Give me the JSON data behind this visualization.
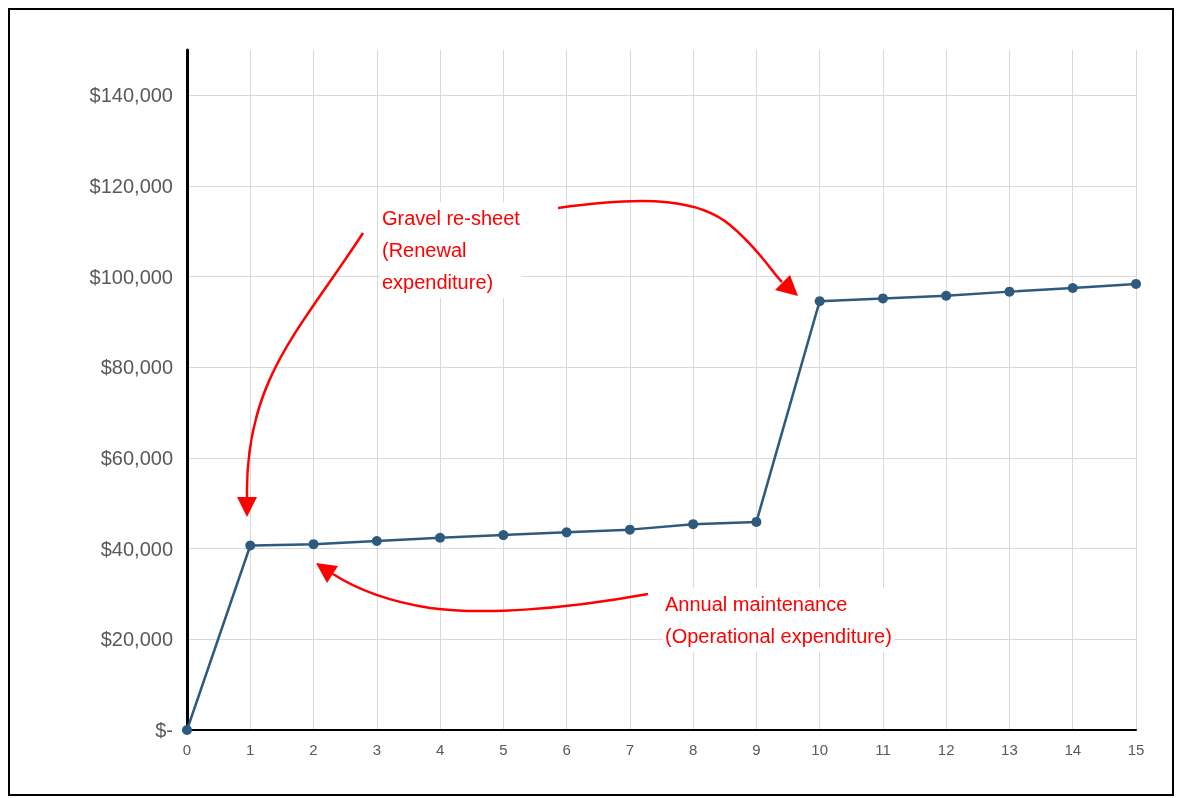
{
  "chart_data": {
    "type": "line",
    "x": [
      0,
      1,
      2,
      3,
      4,
      5,
      6,
      7,
      8,
      9,
      10,
      11,
      12,
      13,
      14,
      15
    ],
    "series": [
      {
        "color": "#2e5a7e",
        "values": [
          0,
          40700,
          41000,
          41700,
          42400,
          43000,
          43600,
          44200,
          45400,
          45900,
          94600,
          95200,
          95800,
          96700,
          97500,
          98400
        ]
      }
    ],
    "xlim": [
      0,
      15
    ],
    "xticks": [
      0,
      1,
      2,
      3,
      4,
      5,
      6,
      7,
      8,
      9,
      10,
      11,
      12,
      13,
      14,
      15
    ],
    "ylim": [
      0,
      150000
    ],
    "yticks": [
      {
        "value": 0,
        "label": "$-"
      },
      {
        "value": 20000,
        "label": "$20,000"
      },
      {
        "value": 40000,
        "label": "$40,000"
      },
      {
        "value": 60000,
        "label": "$60,000"
      },
      {
        "value": 80000,
        "label": "$80,000"
      },
      {
        "value": 100000,
        "label": "$100,000"
      },
      {
        "value": 120000,
        "label": "$120,000"
      },
      {
        "value": 140000,
        "label": "$140,000"
      }
    ],
    "annotations": [
      "Gravel re-sheet\n(Renewal\nexpenditure)",
      "Annual maintenance\n(Operational expenditure)"
    ],
    "grid": true,
    "marker": "circle",
    "line_style": "solid"
  }
}
